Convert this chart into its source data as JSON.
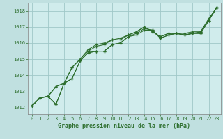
{
  "bg_color": "#c0e0e0",
  "plot_bg_color": "#d0ecec",
  "grid_color": "#a0c8c8",
  "line_color": "#2d6e2d",
  "xlabel": "Graphe pression niveau de la mer (hPa)",
  "ylim": [
    1011.6,
    1018.5
  ],
  "xlim": [
    -0.5,
    23.5
  ],
  "yticks": [
    1012,
    1013,
    1014,
    1015,
    1016,
    1017,
    1018
  ],
  "xticks": [
    0,
    1,
    2,
    3,
    4,
    5,
    6,
    7,
    8,
    9,
    10,
    11,
    12,
    13,
    14,
    15,
    16,
    17,
    18,
    19,
    20,
    21,
    22,
    23
  ],
  "series": [
    [
      1012.1,
      1012.6,
      1012.7,
      1012.2,
      1013.5,
      1013.8,
      1014.9,
      1015.4,
      1015.5,
      1015.5,
      1015.9,
      1016.0,
      1016.4,
      1016.5,
      1016.8,
      1016.8,
      1016.3,
      1016.5,
      1016.6,
      1016.5,
      1016.6,
      1016.6,
      1017.4,
      1018.2
    ],
    [
      1012.1,
      1012.6,
      1012.7,
      1013.3,
      1013.5,
      1014.5,
      1015.0,
      1015.5,
      1015.8,
      1015.9,
      1016.2,
      1016.2,
      1016.5,
      1016.7,
      1017.0,
      1016.7,
      1016.4,
      1016.6,
      1016.6,
      1016.5,
      1016.6,
      1016.7,
      1017.5,
      1018.2
    ],
    [
      1012.1,
      1012.6,
      1012.7,
      1013.3,
      1013.5,
      1014.5,
      1015.0,
      1015.6,
      1015.9,
      1016.0,
      1016.2,
      1016.3,
      1016.5,
      1016.7,
      1017.0,
      1016.7,
      1016.4,
      1016.6,
      1016.6,
      1016.6,
      1016.7,
      1016.7,
      1017.5,
      1018.2
    ],
    [
      1012.1,
      1012.6,
      1012.7,
      1012.2,
      1013.5,
      1013.8,
      1014.9,
      1015.4,
      1015.5,
      1015.5,
      1015.9,
      1016.0,
      1016.4,
      1016.6,
      1016.9,
      1016.8,
      1016.3,
      1016.5,
      1016.6,
      1016.5,
      1016.6,
      1016.6,
      1017.4,
      1018.2
    ]
  ]
}
